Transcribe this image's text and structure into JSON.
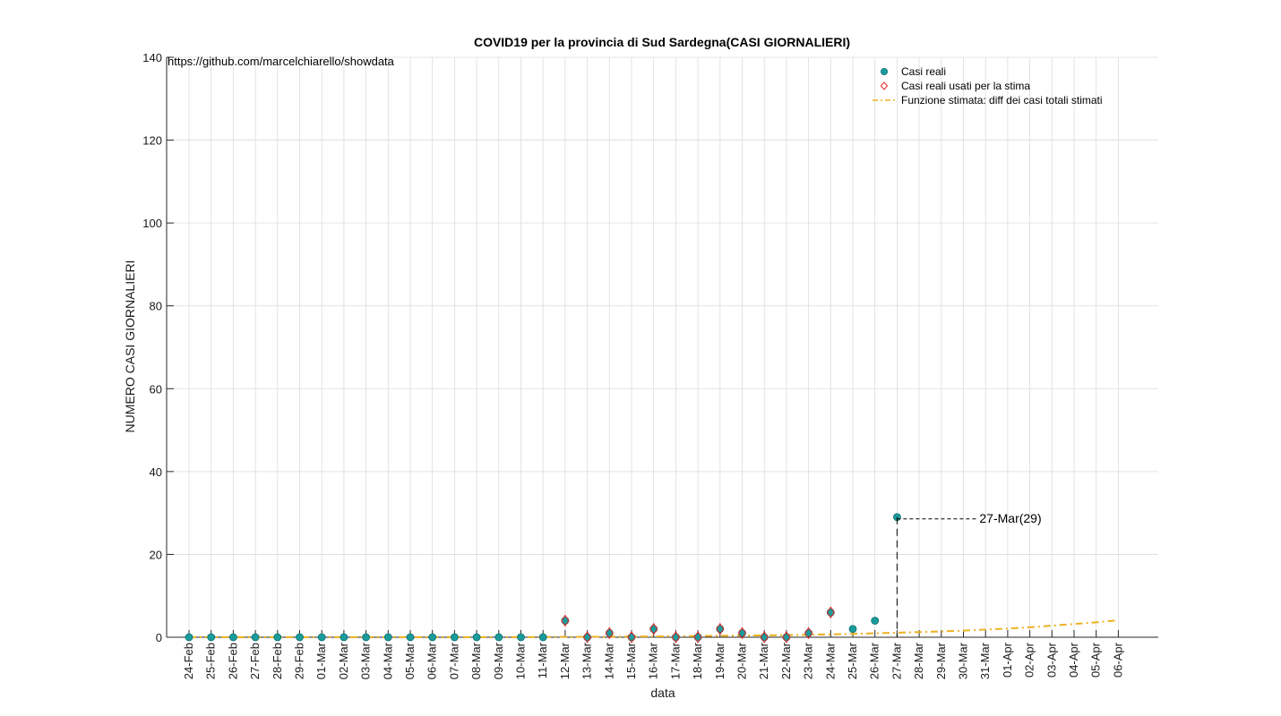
{
  "chart_data": {
    "type": "scatter",
    "title": "COVID19 per la provincia di Sud Sardegna(CASI GIORNALIERI)",
    "xlabel": "data",
    "ylabel": "NUMERO CASI GIORNALIERI",
    "ylim": [
      0,
      140
    ],
    "yticks": [
      0,
      20,
      40,
      60,
      80,
      100,
      120,
      140
    ],
    "grid": true,
    "legend_position": "top-right",
    "source_note": "https://github.com/marcelchiarello/showdata",
    "colors": {
      "real": "#1a9c9c",
      "used": "#e32626",
      "fit": "#edb120",
      "annotation": "#000000"
    },
    "x": [
      "24-Feb",
      "25-Feb",
      "26-Feb",
      "27-Feb",
      "28-Feb",
      "29-Feb",
      "01-Mar",
      "02-Mar",
      "03-Mar",
      "04-Mar",
      "05-Mar",
      "06-Mar",
      "07-Mar",
      "08-Mar",
      "09-Mar",
      "10-Mar",
      "11-Mar",
      "12-Mar",
      "13-Mar",
      "14-Mar",
      "15-Mar",
      "16-Mar",
      "17-Mar",
      "18-Mar",
      "19-Mar",
      "20-Mar",
      "21-Mar",
      "22-Mar",
      "23-Mar",
      "24-Mar",
      "25-Mar",
      "26-Mar",
      "27-Mar",
      "28-Mar",
      "29-Mar",
      "30-Mar",
      "31-Mar",
      "01-Apr",
      "02-Apr",
      "03-Apr",
      "04-Apr",
      "05-Apr",
      "06-Apr"
    ],
    "series": [
      {
        "name": "Casi reali",
        "marker": "circle",
        "x": [
          "24-Feb",
          "25-Feb",
          "26-Feb",
          "27-Feb",
          "28-Feb",
          "29-Feb",
          "01-Mar",
          "02-Mar",
          "03-Mar",
          "04-Mar",
          "05-Mar",
          "06-Mar",
          "07-Mar",
          "08-Mar",
          "09-Mar",
          "10-Mar",
          "11-Mar",
          "12-Mar",
          "13-Mar",
          "14-Mar",
          "15-Mar",
          "16-Mar",
          "17-Mar",
          "18-Mar",
          "19-Mar",
          "20-Mar",
          "21-Mar",
          "22-Mar",
          "23-Mar",
          "24-Mar",
          "25-Mar",
          "26-Mar",
          "27-Mar"
        ],
        "values": [
          0,
          0,
          0,
          0,
          0,
          0,
          0,
          0,
          0,
          0,
          0,
          0,
          0,
          0,
          0,
          0,
          0,
          4,
          0,
          1,
          0,
          2,
          0,
          0,
          2,
          1,
          0,
          0,
          1,
          6,
          2,
          4,
          29
        ]
      },
      {
        "name": "Casi reali usati per la stima",
        "marker": "diamond",
        "x": [
          "12-Mar",
          "13-Mar",
          "14-Mar",
          "15-Mar",
          "16-Mar",
          "17-Mar",
          "18-Mar",
          "19-Mar",
          "20-Mar",
          "21-Mar",
          "22-Mar",
          "23-Mar",
          "24-Mar"
        ],
        "values": [
          4,
          0,
          1,
          0,
          2,
          0,
          0,
          2,
          1,
          0,
          0,
          1,
          6
        ]
      },
      {
        "name": "Funzione stimata: diff dei casi totali stimati",
        "marker": "dashdot-line",
        "x": [
          "24-Feb",
          "25-Feb",
          "26-Feb",
          "27-Feb",
          "28-Feb",
          "29-Feb",
          "01-Mar",
          "02-Mar",
          "03-Mar",
          "04-Mar",
          "05-Mar",
          "06-Mar",
          "07-Mar",
          "08-Mar",
          "09-Mar",
          "10-Mar",
          "11-Mar",
          "12-Mar",
          "13-Mar",
          "14-Mar",
          "15-Mar",
          "16-Mar",
          "17-Mar",
          "18-Mar",
          "19-Mar",
          "20-Mar",
          "21-Mar",
          "22-Mar",
          "23-Mar",
          "24-Mar",
          "25-Mar",
          "26-Mar",
          "27-Mar",
          "28-Mar",
          "29-Mar",
          "30-Mar",
          "31-Mar",
          "01-Apr",
          "02-Apr",
          "03-Apr",
          "04-Apr",
          "05-Apr",
          "06-Apr"
        ],
        "values": [
          0,
          0,
          0,
          0,
          0,
          0,
          0,
          0,
          0,
          0,
          0,
          0,
          0,
          0,
          0,
          0,
          0.05,
          0.08,
          0.1,
          0.13,
          0.16,
          0.2,
          0.25,
          0.3,
          0.35,
          0.4,
          0.45,
          0.5,
          0.6,
          0.7,
          0.8,
          0.95,
          1.1,
          1.25,
          1.4,
          1.6,
          1.85,
          2.1,
          2.4,
          2.8,
          3.2,
          3.6,
          4.1
        ]
      }
    ],
    "annotation": {
      "x": "27-Mar",
      "y": 29,
      "label": "27-Mar(29)"
    }
  }
}
